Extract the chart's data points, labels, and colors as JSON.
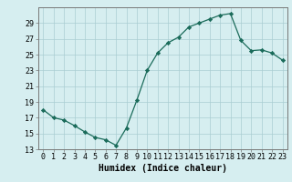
{
  "x": [
    0,
    1,
    2,
    3,
    4,
    5,
    6,
    7,
    8,
    9,
    10,
    11,
    12,
    13,
    14,
    15,
    16,
    17,
    18,
    19,
    20,
    21,
    22,
    23
  ],
  "y": [
    18.0,
    17.0,
    16.7,
    16.0,
    15.2,
    14.5,
    14.2,
    13.5,
    15.7,
    19.2,
    23.0,
    25.2,
    26.5,
    27.2,
    28.5,
    29.0,
    29.5,
    30.0,
    30.2,
    26.8,
    25.5,
    25.6,
    25.2,
    24.3
  ],
  "xlabel": "Humidex (Indice chaleur)",
  "ylim": [
    13,
    31
  ],
  "yticks": [
    13,
    15,
    17,
    19,
    21,
    23,
    25,
    27,
    29
  ],
  "xticks": [
    0,
    1,
    2,
    3,
    4,
    5,
    6,
    7,
    8,
    9,
    10,
    11,
    12,
    13,
    14,
    15,
    16,
    17,
    18,
    19,
    20,
    21,
    22,
    23
  ],
  "line_color": "#1a6b5a",
  "marker": "D",
  "marker_size": 2.2,
  "bg_color": "#d6eef0",
  "grid_color": "#aacdd2",
  "axis_color": "#777777",
  "font_color": "#000000",
  "xlabel_fontsize": 7.0,
  "tick_fontsize": 6.0
}
